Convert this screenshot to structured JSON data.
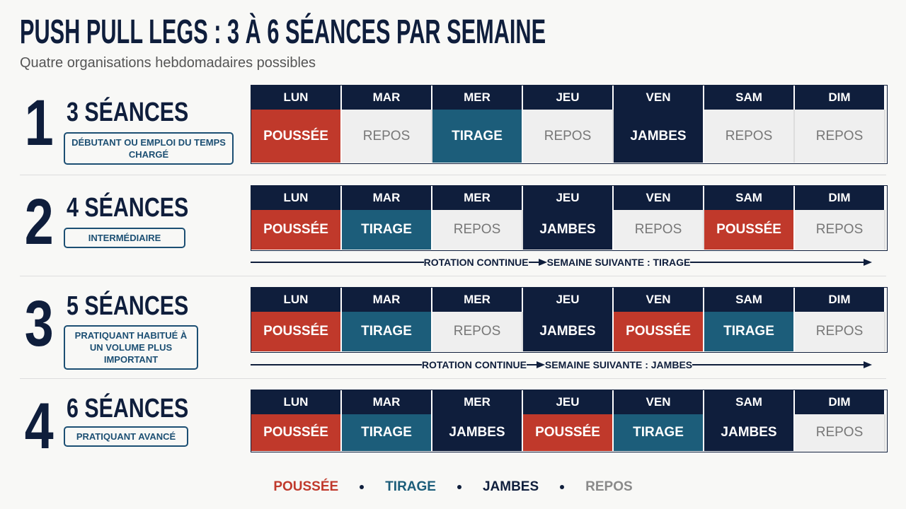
{
  "header": {
    "title": "PUSH PULL LEGS : 3 À 6 SÉANCES PAR SEMAINE",
    "subtitle": "Quatre organisations hebdomadaires possibles"
  },
  "days": [
    "LUN",
    "MAR",
    "MER",
    "JEU",
    "VEN",
    "SAM",
    "DIM"
  ],
  "legend": [
    {
      "name": "POUSSÉE",
      "color": "#c0392b"
    },
    {
      "name": "TIRAGE",
      "color": "#1c5d7a"
    },
    {
      "name": "JAMBES",
      "color": "#0f1e3c"
    },
    {
      "name": "REPOS",
      "color": "#8a8a8a"
    }
  ],
  "plans": [
    {
      "number": "1",
      "label": "3 SÉANCES",
      "audience": "DÉBUTANT OU EMPLOI DU TEMPS CHARGÉ",
      "cells": [
        "POUSSÉE",
        "REPOS",
        "TIRAGE",
        "REPOS",
        "JAMBES",
        "REPOS",
        "REPOS"
      ]
    },
    {
      "number": "2",
      "label": "4 SÉANCES",
      "audience": "INTERMÉDIAIRE",
      "cells": [
        "POUSSÉE",
        "TIRAGE",
        "REPOS",
        "JAMBES",
        "REPOS",
        "POUSSÉE",
        "REPOS"
      ],
      "rotation": [
        "ROTATION CONTINUE",
        "SEMAINE SUIVANTE : TIRAGE"
      ]
    },
    {
      "number": "3",
      "label": "5 SÉANCES",
      "audience": "PRATIQUANT HABITUÉ À UN VOLUME PLUS IMPORTANT",
      "cells": [
        "POUSSÉE",
        "TIRAGE",
        "REPOS",
        "JAMBES",
        "POUSSÉE",
        "TIRAGE",
        "REPOS"
      ],
      "rotation": [
        "ROTATION CONTINUE",
        "SEMAINE SUIVANTE : JAMBES"
      ]
    },
    {
      "number": "4",
      "label": "6 SÉANCES",
      "audience": "PRATIQUANT AVANCÉ",
      "cells": [
        "POUSSÉE",
        "TIRAGE",
        "JAMBES",
        "POUSSÉE",
        "TIRAGE",
        "JAMBES",
        "REPOS"
      ]
    }
  ]
}
